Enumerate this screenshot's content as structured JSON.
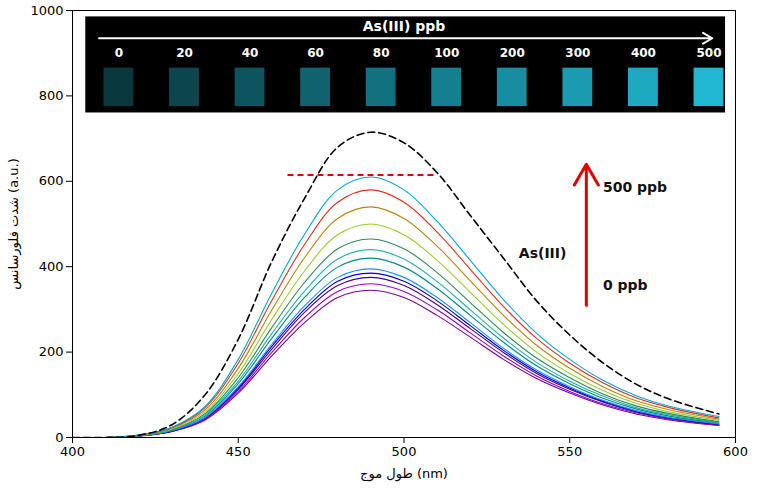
{
  "chart_data": {
    "type": "line",
    "x_label": "طول موج (nm)",
    "y_label": "شدت فلورسانس (a.u.)",
    "x": [
      400,
      410,
      420,
      430,
      440,
      450,
      460,
      470,
      480,
      490,
      500,
      510,
      520,
      530,
      540,
      550,
      560,
      570,
      580,
      595
    ],
    "xlim": [
      400,
      600
    ],
    "xticks": [
      400,
      450,
      500,
      550,
      600
    ],
    "ylim": [
      0,
      1000
    ],
    "yticks": [
      0,
      200,
      400,
      600,
      800,
      1000
    ],
    "grid": false,
    "series": [
      {
        "color": "#7b0099",
        "line_style": "solid",
        "values": [
          0,
          0,
          3,
          14,
          41,
          104,
          190,
          269,
          328,
          345,
          328,
          286,
          235,
          183,
          138,
          104,
          76,
          55,
          41,
          28
        ]
      },
      {
        "color": "#9400d3",
        "line_style": "solid",
        "values": [
          0,
          0,
          4,
          14,
          43,
          108,
          198,
          281,
          342,
          360,
          342,
          299,
          245,
          191,
          144,
          108,
          79,
          58,
          43,
          29
        ]
      },
      {
        "color": "#4b0082",
        "line_style": "solid",
        "values": [
          0,
          0,
          4,
          15,
          45,
          113,
          206,
          293,
          356,
          375,
          356,
          311,
          255,
          199,
          150,
          113,
          83,
          60,
          45,
          30
        ]
      },
      {
        "color": "#0000cd",
        "line_style": "solid",
        "values": [
          0,
          0,
          4,
          15,
          46,
          116,
          212,
          300,
          366,
          385,
          366,
          320,
          262,
          204,
          154,
          116,
          85,
          62,
          46,
          31
        ]
      },
      {
        "color": "#1e90ff",
        "line_style": "solid",
        "values": [
          0,
          0,
          4,
          16,
          47,
          119,
          217,
          308,
          375,
          395,
          375,
          328,
          269,
          209,
          158,
          119,
          87,
          63,
          47,
          32
        ]
      },
      {
        "color": "#008b8b",
        "line_style": "solid",
        "values": [
          0,
          0,
          4,
          17,
          50,
          126,
          231,
          328,
          399,
          420,
          399,
          349,
          286,
          223,
          168,
          126,
          92,
          67,
          50,
          34
        ]
      },
      {
        "color": "#20b2aa",
        "line_style": "solid",
        "values": [
          0,
          0,
          4,
          18,
          53,
          132,
          242,
          343,
          418,
          440,
          418,
          365,
          299,
          233,
          176,
          132,
          97,
          70,
          53,
          35
        ]
      },
      {
        "color": "#2e8b57",
        "line_style": "solid",
        "values": [
          0,
          0,
          5,
          19,
          56,
          140,
          256,
          363,
          442,
          465,
          442,
          386,
          316,
          246,
          186,
          140,
          102,
          74,
          56,
          37
        ]
      },
      {
        "color": "#9acd32",
        "line_style": "solid",
        "values": [
          0,
          0,
          5,
          20,
          60,
          150,
          275,
          390,
          475,
          500,
          475,
          415,
          340,
          265,
          200,
          150,
          110,
          80,
          60,
          40
        ]
      },
      {
        "color": "#b8860b",
        "line_style": "solid",
        "values": [
          0,
          0,
          5,
          22,
          65,
          162,
          297,
          421,
          513,
          540,
          513,
          448,
          367,
          286,
          216,
          162,
          119,
          86,
          65,
          43
        ]
      },
      {
        "color": "#e0301e",
        "line_style": "solid",
        "values": [
          0,
          0,
          6,
          23,
          70,
          174,
          319,
          452,
          551,
          580,
          551,
          481,
          394,
          307,
          232,
          174,
          128,
          93,
          70,
          46
        ]
      },
      {
        "color": "#00a6d6",
        "line_style": "solid",
        "values": [
          0,
          0,
          6,
          24,
          73,
          183,
          336,
          476,
          580,
          610,
          580,
          506,
          415,
          323,
          244,
          183,
          134,
          98,
          73,
          49
        ]
      },
      {
        "color": "#000000",
        "line_style": "dashed",
        "values": [
          0,
          0,
          5,
          30,
          100,
          230,
          410,
          560,
          680,
          715,
          690,
          620,
          520,
          420,
          320,
          240,
          175,
          125,
          90,
          55
        ]
      }
    ],
    "reference_line": {
      "value": 615,
      "color": "#e00000",
      "line_style": "dashed"
    },
    "annotations": [
      {
        "text": "500 ppb"
      },
      {
        "text": "As(III)"
      },
      {
        "text": "0 ppb"
      }
    ],
    "arrow_color": "#e00000",
    "inset": {
      "title": "As(III) ppb",
      "labels": [
        0,
        20,
        40,
        60,
        80,
        100,
        200,
        300,
        400,
        500
      ],
      "color": "#1fb8d0"
    }
  }
}
